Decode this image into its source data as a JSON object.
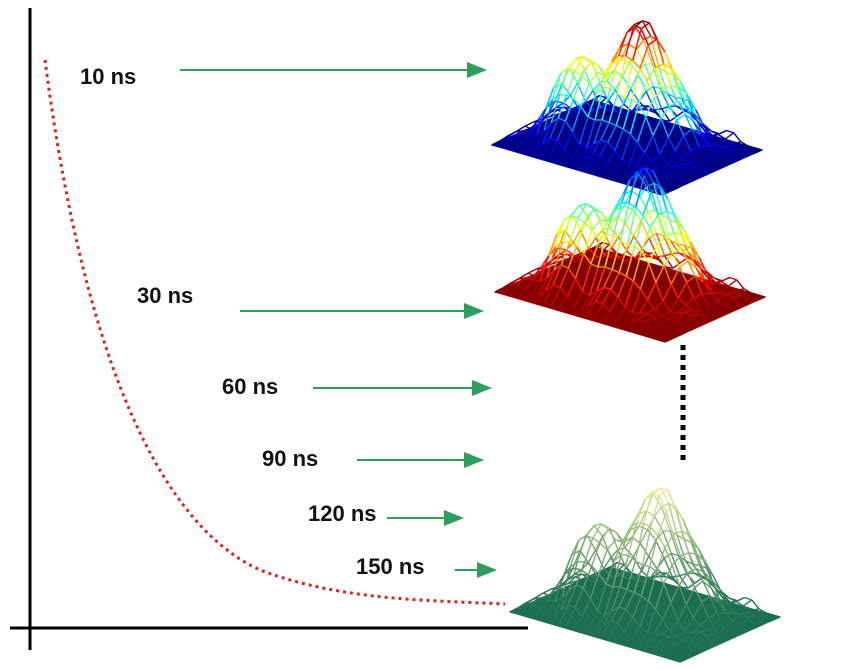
{
  "labels": [
    "10 ns",
    "30 ns",
    "60 ns",
    "90 ns",
    "120 ns",
    "150 ns"
  ]
}
